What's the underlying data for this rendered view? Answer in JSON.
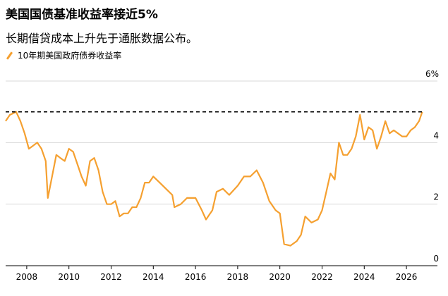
{
  "title": "美国国债基准收益率接近5%",
  "subtitle": "长期借贷成本上升先于通胀数据公布。",
  "chart_data": {
    "type": "line",
    "series": [
      {
        "name": "10年期美国政府债券收益率",
        "color": "#f5a030",
        "x": [
          2007.0,
          2007.2,
          2007.5,
          2007.7,
          2007.9,
          2008.1,
          2008.3,
          2008.5,
          2008.7,
          2008.9,
          2009.0,
          2009.2,
          2009.4,
          2009.6,
          2009.8,
          2010.0,
          2010.2,
          2010.4,
          2010.6,
          2010.8,
          2011.0,
          2011.2,
          2011.4,
          2011.6,
          2011.8,
          2012.0,
          2012.2,
          2012.4,
          2012.6,
          2012.8,
          2013.0,
          2013.2,
          2013.4,
          2013.6,
          2013.8,
          2014.0,
          2014.3,
          2014.6,
          2014.9,
          2015.0,
          2015.3,
          2015.6,
          2016.0,
          2016.3,
          2016.5,
          2016.8,
          2017.0,
          2017.3,
          2017.6,
          2018.0,
          2018.3,
          2018.6,
          2018.9,
          2019.2,
          2019.5,
          2019.8,
          2020.0,
          2020.2,
          2020.5,
          2020.8,
          2021.0,
          2021.2,
          2021.5,
          2021.8,
          2022.0,
          2022.2,
          2022.4,
          2022.6,
          2022.8,
          2023.0,
          2023.2,
          2023.4,
          2023.6,
          2023.8,
          2024.0,
          2024.2,
          2024.4,
          2024.6,
          2024.8,
          2025.0,
          2025.2,
          2025.4,
          2025.6,
          2025.8,
          2026.0,
          2026.2,
          2026.4,
          2026.6,
          2026.75
        ],
        "y": [
          4.7,
          4.9,
          5.0,
          4.7,
          4.3,
          3.8,
          3.9,
          4.0,
          3.8,
          3.4,
          2.2,
          2.9,
          3.6,
          3.5,
          3.4,
          3.8,
          3.7,
          3.3,
          2.9,
          2.6,
          3.4,
          3.5,
          3.1,
          2.4,
          2.0,
          2.0,
          2.1,
          1.6,
          1.7,
          1.7,
          1.9,
          1.9,
          2.2,
          2.7,
          2.7,
          2.9,
          2.7,
          2.5,
          2.3,
          1.9,
          2.0,
          2.2,
          2.2,
          1.8,
          1.5,
          1.8,
          2.4,
          2.5,
          2.3,
          2.6,
          2.9,
          2.9,
          3.1,
          2.7,
          2.1,
          1.8,
          1.7,
          0.7,
          0.65,
          0.8,
          1.0,
          1.6,
          1.4,
          1.5,
          1.8,
          2.4,
          3.0,
          2.8,
          4.0,
          3.6,
          3.6,
          3.8,
          4.2,
          4.9,
          4.1,
          4.5,
          4.4,
          3.8,
          4.2,
          4.7,
          4.3,
          4.4,
          4.3,
          4.2,
          4.2,
          4.4,
          4.5,
          4.7,
          5.0
        ]
      }
    ],
    "x_ticks": [
      2008,
      2010,
      2012,
      2014,
      2016,
      2018,
      2020,
      2022,
      2024,
      2026
    ],
    "x_tick_labels": [
      "2008",
      "2010",
      "2012",
      "2014",
      "2016",
      "2018",
      "2020",
      "2022",
      "2024",
      "2026"
    ],
    "xlim": [
      2007.0,
      2026.8
    ],
    "y_ticks": [
      0,
      2,
      4,
      6
    ],
    "y_tick_labels": [
      "0",
      "2",
      "4",
      "6%"
    ],
    "ylim": [
      0,
      6
    ],
    "reference_line": {
      "y": 5,
      "style": "dashed",
      "color": "#000000"
    },
    "grid": true
  }
}
